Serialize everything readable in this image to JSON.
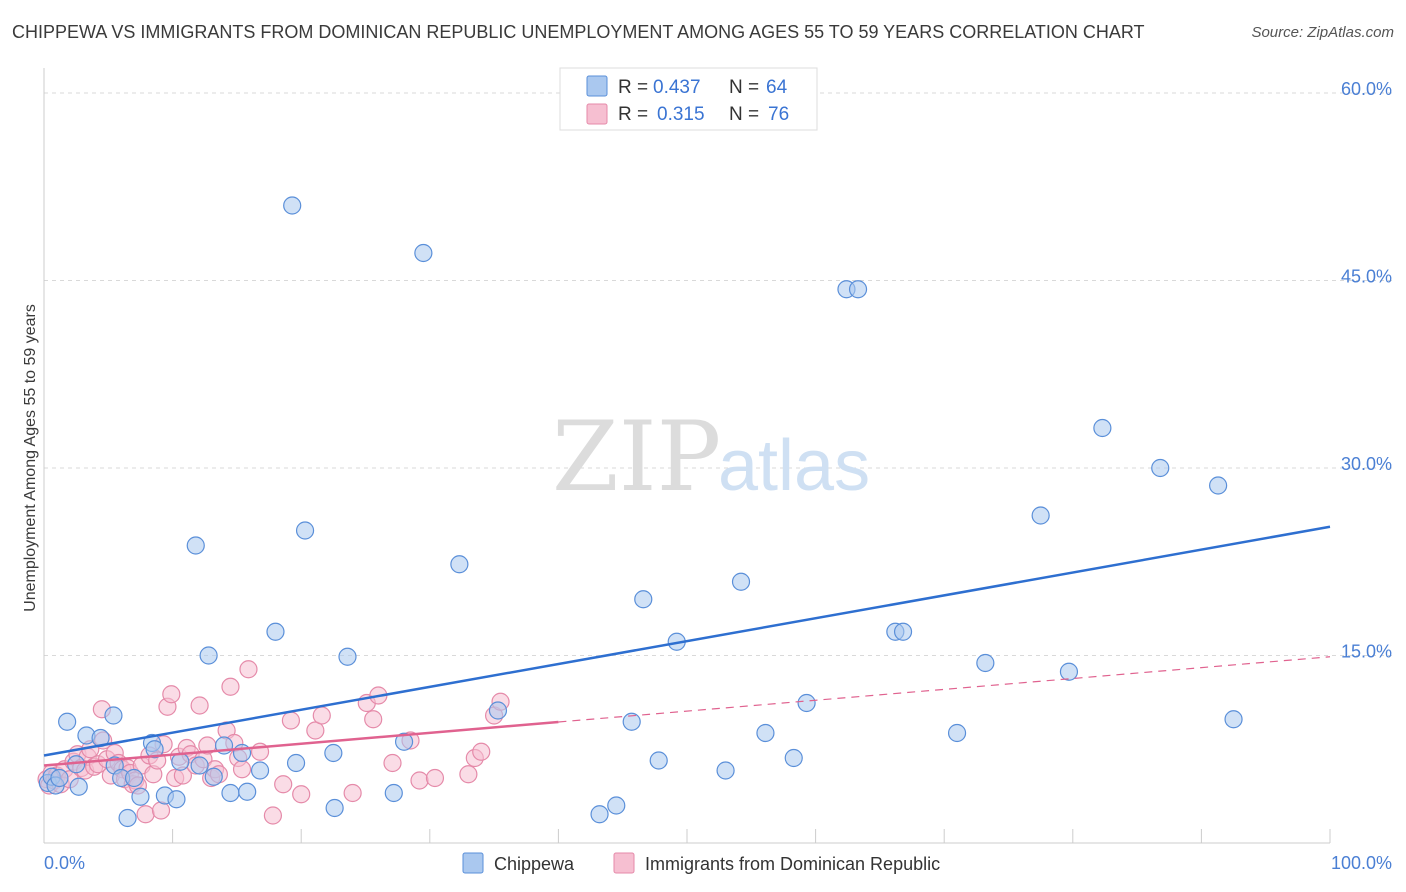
{
  "title": "CHIPPEWA VS IMMIGRANTS FROM DOMINICAN REPUBLIC UNEMPLOYMENT AMONG AGES 55 TO 59 YEARS CORRELATION CHART",
  "source": "Source: ZipAtlas.com",
  "watermark": {
    "part1": "ZIP",
    "part2": "atlas"
  },
  "colors": {
    "chippewa_fill": "#aac8ef",
    "chippewa_stroke": "#5a8fd9",
    "chippewa_line": "#2e6fd0",
    "dominican_fill": "#f6bfd1",
    "dominican_stroke": "#e58aa9",
    "dominican_line": "#e0628f",
    "grid": "#d9d9d9",
    "axis_text": "#4a7fd4"
  },
  "legend": {
    "rows": [
      {
        "r_label": "R = ",
        "r_value": "0.437",
        "n_label": "N = ",
        "n_value": "64"
      },
      {
        "r_label": "R = ",
        "r_value": "0.315",
        "n_label": "N = ",
        "n_value": "76"
      }
    ]
  },
  "chart_data": {
    "type": "scatter",
    "title": "CHIPPEWA VS IMMIGRANTS FROM DOMINICAN REPUBLIC UNEMPLOYMENT AMONG AGES 55 TO 59 YEARS CORRELATION CHART",
    "xlabel": "",
    "ylabel": "Unemployment Among Ages 55 to 59 years",
    "xlim": [
      0,
      100
    ],
    "ylim": [
      0,
      62
    ],
    "x_tick_labels": [
      "0.0%",
      "100.0%"
    ],
    "y_ticks": [
      15,
      30,
      45,
      60
    ],
    "y_tick_labels": [
      "15.0%",
      "30.0%",
      "45.0%",
      "60.0%"
    ],
    "grid": true,
    "legend_position": "top-center",
    "series": [
      {
        "name": "Chippewa",
        "R": 0.437,
        "N": 64,
        "trend": {
          "x0": 0,
          "y0": 7.0,
          "x1": 100,
          "y1": 25.3,
          "dashed_from": null
        },
        "points": [
          [
            0.3,
            4.8
          ],
          [
            0.6,
            5.3
          ],
          [
            0.9,
            4.6
          ],
          [
            1.2,
            5.2
          ],
          [
            1.8,
            9.7
          ],
          [
            2.5,
            6.3
          ],
          [
            2.7,
            4.5
          ],
          [
            3.3,
            8.6
          ],
          [
            4.4,
            8.4
          ],
          [
            5.4,
            10.2
          ],
          [
            5.5,
            6.2
          ],
          [
            6.0,
            5.2
          ],
          [
            6.5,
            2.0
          ],
          [
            7.0,
            5.2
          ],
          [
            7.5,
            3.7
          ],
          [
            8.4,
            8.0
          ],
          [
            8.6,
            7.5
          ],
          [
            9.4,
            3.8
          ],
          [
            10.3,
            3.5
          ],
          [
            10.6,
            6.5
          ],
          [
            11.8,
            23.8
          ],
          [
            12.1,
            6.2
          ],
          [
            12.8,
            15.0
          ],
          [
            13.2,
            5.3
          ],
          [
            14.0,
            7.8
          ],
          [
            14.5,
            4.0
          ],
          [
            15.4,
            7.2
          ],
          [
            15.8,
            4.1
          ],
          [
            16.8,
            5.8
          ],
          [
            18.0,
            16.9
          ],
          [
            19.3,
            51.0
          ],
          [
            19.6,
            6.4
          ],
          [
            20.3,
            25.0
          ],
          [
            22.5,
            7.2
          ],
          [
            22.6,
            2.8
          ],
          [
            23.6,
            14.9
          ],
          [
            27.2,
            4.0
          ],
          [
            28.0,
            8.1
          ],
          [
            29.5,
            47.2
          ],
          [
            32.3,
            22.3
          ],
          [
            35.3,
            10.6
          ],
          [
            43.2,
            2.3
          ],
          [
            44.5,
            3.0
          ],
          [
            45.7,
            9.7
          ],
          [
            46.6,
            19.5
          ],
          [
            47.8,
            6.6
          ],
          [
            49.2,
            16.1
          ],
          [
            53.0,
            5.8
          ],
          [
            54.2,
            20.9
          ],
          [
            56.1,
            8.8
          ],
          [
            58.3,
            6.8
          ],
          [
            59.3,
            11.2
          ],
          [
            62.4,
            44.3
          ],
          [
            63.3,
            44.3
          ],
          [
            66.2,
            16.9
          ],
          [
            66.8,
            16.9
          ],
          [
            71.0,
            8.8
          ],
          [
            73.2,
            14.4
          ],
          [
            77.5,
            26.2
          ],
          [
            79.7,
            13.7
          ],
          [
            82.3,
            33.2
          ],
          [
            86.8,
            30.0
          ],
          [
            91.3,
            28.6
          ],
          [
            92.5,
            9.9
          ]
        ]
      },
      {
        "name": "Immigrants from Dominican Republic",
        "R": 0.315,
        "N": 76,
        "trend": {
          "x0": 0,
          "y0": 6.2,
          "x1": 100,
          "y1": 14.9,
          "dashed_from": 40
        },
        "points": [
          [
            0.2,
            5.1
          ],
          [
            0.4,
            4.6
          ],
          [
            0.6,
            5.6
          ],
          [
            0.8,
            5.0
          ],
          [
            1.0,
            5.4
          ],
          [
            1.3,
            4.7
          ],
          [
            1.6,
            5.9
          ],
          [
            2.0,
            5.1
          ],
          [
            2.3,
            6.5
          ],
          [
            2.6,
            7.1
          ],
          [
            2.9,
            6.0
          ],
          [
            3.2,
            5.8
          ],
          [
            3.4,
            6.9
          ],
          [
            3.6,
            7.5
          ],
          [
            3.9,
            6.1
          ],
          [
            4.2,
            6.3
          ],
          [
            4.5,
            10.7
          ],
          [
            4.6,
            8.2
          ],
          [
            4.9,
            6.7
          ],
          [
            5.2,
            5.4
          ],
          [
            5.5,
            7.2
          ],
          [
            5.8,
            6.4
          ],
          [
            6.1,
            5.9
          ],
          [
            6.3,
            5.1
          ],
          [
            6.5,
            6.0
          ],
          [
            6.7,
            5.6
          ],
          [
            6.9,
            4.7
          ],
          [
            7.1,
            5.0
          ],
          [
            7.3,
            4.6
          ],
          [
            7.6,
            6.2
          ],
          [
            7.9,
            2.3
          ],
          [
            8.2,
            7.0
          ],
          [
            8.5,
            5.5
          ],
          [
            8.8,
            6.6
          ],
          [
            9.1,
            2.6
          ],
          [
            9.3,
            7.9
          ],
          [
            9.6,
            10.9
          ],
          [
            9.9,
            11.9
          ],
          [
            10.2,
            5.2
          ],
          [
            10.5,
            6.9
          ],
          [
            10.8,
            5.4
          ],
          [
            11.1,
            7.6
          ],
          [
            11.4,
            7.1
          ],
          [
            11.8,
            6.2
          ],
          [
            12.1,
            11.0
          ],
          [
            12.4,
            6.7
          ],
          [
            12.7,
            7.8
          ],
          [
            13.0,
            5.2
          ],
          [
            13.3,
            5.9
          ],
          [
            13.6,
            5.5
          ],
          [
            14.2,
            9.0
          ],
          [
            14.5,
            12.5
          ],
          [
            14.8,
            8.0
          ],
          [
            15.1,
            6.8
          ],
          [
            15.4,
            5.9
          ],
          [
            15.9,
            13.9
          ],
          [
            16.8,
            7.3
          ],
          [
            17.8,
            2.2
          ],
          [
            18.6,
            4.7
          ],
          [
            19.2,
            9.8
          ],
          [
            20.0,
            3.9
          ],
          [
            21.1,
            9.0
          ],
          [
            21.6,
            10.2
          ],
          [
            24.0,
            4.0
          ],
          [
            25.1,
            11.2
          ],
          [
            25.6,
            9.9
          ],
          [
            26.0,
            11.8
          ],
          [
            27.1,
            6.4
          ],
          [
            28.5,
            8.2
          ],
          [
            29.2,
            5.0
          ],
          [
            30.4,
            5.2
          ],
          [
            33.0,
            5.5
          ],
          [
            33.5,
            6.8
          ],
          [
            34.0,
            7.3
          ],
          [
            35.0,
            10.2
          ],
          [
            35.5,
            11.3
          ]
        ]
      }
    ]
  },
  "bottom_legend": [
    {
      "label": "Chippewa"
    },
    {
      "label": "Immigrants from Dominican Republic"
    }
  ]
}
